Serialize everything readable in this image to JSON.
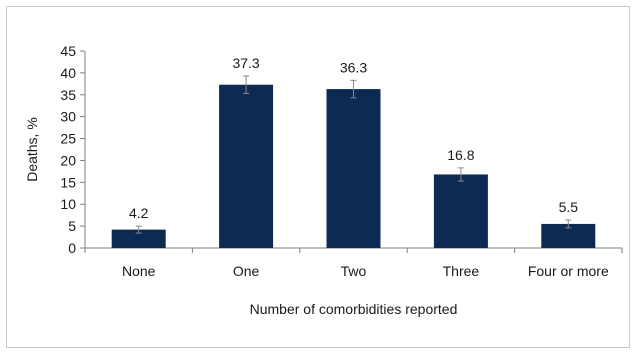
{
  "chart_data": {
    "type": "bar",
    "categories": [
      "None",
      "One",
      "Two",
      "Three",
      "Four or more"
    ],
    "values": [
      4.2,
      37.3,
      36.3,
      16.8,
      5.5
    ],
    "error_bars": [
      [
        3.4,
        5.0
      ],
      [
        35.3,
        39.3
      ],
      [
        34.3,
        38.3
      ],
      [
        15.3,
        18.3
      ],
      [
        4.6,
        6.4
      ]
    ],
    "data_labels": [
      "4.2",
      "37.3",
      "36.3",
      "16.8",
      "5.5"
    ],
    "title": "",
    "xlabel": "Number of comorbidities reported",
    "ylabel": "Deaths, %",
    "ylim": [
      0,
      45
    ],
    "yticks": [
      0,
      5,
      10,
      15,
      20,
      25,
      30,
      35,
      40,
      45
    ],
    "bar_color": "#0d2b52",
    "error_bar_color": "#888888",
    "grid": false,
    "legend": "none"
  }
}
